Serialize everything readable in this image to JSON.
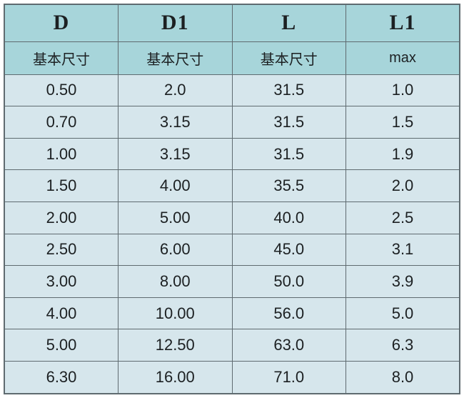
{
  "chart_data": {
    "type": "table",
    "title": "",
    "columns": [
      {
        "label": "D",
        "sublabel": "基本尺寸"
      },
      {
        "label": "D1",
        "sublabel": "基本尺寸"
      },
      {
        "label": "L",
        "sublabel": "基本尺寸"
      },
      {
        "label": "L1",
        "sublabel": "max"
      }
    ],
    "rows": [
      [
        "0.50",
        "2.0",
        "31.5",
        "1.0"
      ],
      [
        "0.70",
        "3.15",
        "31.5",
        "1.5"
      ],
      [
        "1.00",
        "3.15",
        "31.5",
        "1.9"
      ],
      [
        "1.50",
        "4.00",
        "35.5",
        "2.0"
      ],
      [
        "2.00",
        "5.00",
        "40.0",
        "2.5"
      ],
      [
        "2.50",
        "6.00",
        "45.0",
        "3.1"
      ],
      [
        "3.00",
        "8.00",
        "50.0",
        "3.9"
      ],
      [
        "4.00",
        "10.00",
        "56.0",
        "5.0"
      ],
      [
        "5.00",
        "12.50",
        "63.0",
        "6.3"
      ],
      [
        "6.30",
        "16.00",
        "71.0",
        "8.0"
      ]
    ],
    "layout": {
      "grid": true,
      "header_rows": 2,
      "column_count": 4,
      "row_count": 10
    }
  },
  "colors": {
    "header_bg": "#a7d5da",
    "row_bg": "#d6e6ec",
    "border": "#5f6b70",
    "text": "#1c2022",
    "page_bg": "#ffffff"
  }
}
